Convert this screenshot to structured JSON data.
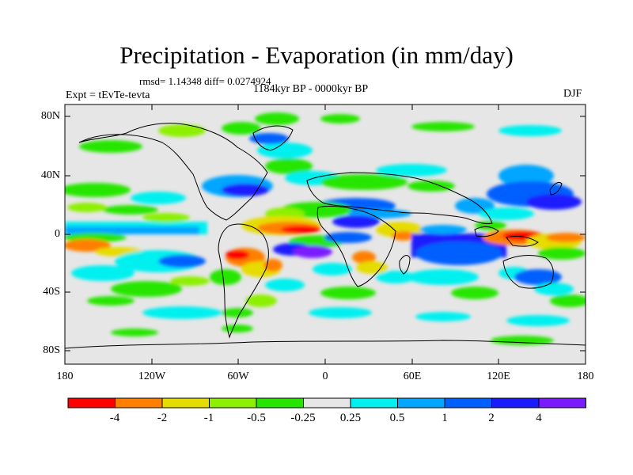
{
  "header": {
    "title": "Precipitation - Evaporation (in mm/day)",
    "stats": "rmsd= 1.14348 diff= 0.0274924",
    "subtitle": "1184kyr BP - 0000kyr BP",
    "experiment": "Expt = tEvTe-tevta",
    "season": "DJF"
  },
  "axes": {
    "lat_labels": [
      "80N",
      "40N",
      "0",
      "40S",
      "80S"
    ],
    "lon_labels": [
      "180",
      "120W",
      "60W",
      "0",
      "60E",
      "120E",
      "180"
    ]
  },
  "colorbar": {
    "colors": [
      "#ff0000",
      "#ff8000",
      "#e6dc00",
      "#8cf000",
      "#26e600",
      "#e6e6e6",
      "#00f0f0",
      "#00a6ff",
      "#0060ff",
      "#1a1aff",
      "#7a1aff"
    ],
    "labels": [
      "-4",
      "-2",
      "-1",
      "-0.5",
      "-0.25",
      "0.25",
      "0.5",
      "1",
      "2",
      "4"
    ]
  },
  "map": {
    "background_color": "#e6e6e6",
    "field": "Precipitation minus evaporation difference",
    "legend_position": "bottom"
  }
}
